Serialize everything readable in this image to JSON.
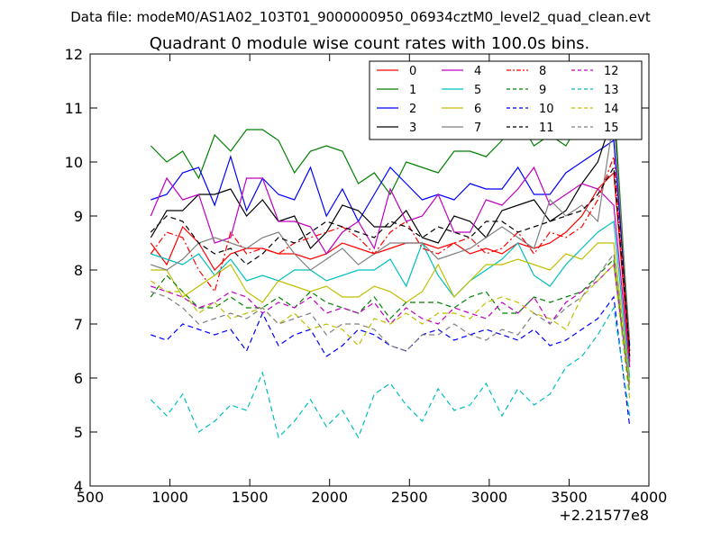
{
  "figure": {
    "suptitle": "Data file: modeM0/AS1A02_103T01_9000000950_06934cztM0_level2_quad_clean.evt"
  },
  "chart_data": {
    "type": "line",
    "title": "Quadrant 0 module wise count rates with 100.0s bins.",
    "xlabel": "",
    "ylabel": "",
    "xlim": [
      500,
      4000
    ],
    "ylim": [
      4,
      12
    ],
    "x_offset_label": "+2.21577e8",
    "xticks": [
      500,
      1000,
      1500,
      2000,
      2500,
      3000,
      3500,
      4000
    ],
    "yticks": [
      4,
      5,
      6,
      7,
      8,
      9,
      10,
      11,
      12
    ],
    "xtick_labels": [
      "500",
      "1000",
      "1500",
      "2000",
      "2500",
      "3000",
      "3500",
      "4000"
    ],
    "ytick_labels": [
      "4",
      "5",
      "6",
      "7",
      "8",
      "9",
      "10",
      "11",
      "12"
    ],
    "grid": false,
    "legend": {
      "placement": "top-right",
      "columns": 4
    },
    "x": [
      880,
      980,
      1080,
      1180,
      1280,
      1380,
      1480,
      1580,
      1680,
      1780,
      1880,
      1980,
      2080,
      2180,
      2280,
      2380,
      2480,
      2580,
      2680,
      2780,
      2880,
      2980,
      3080,
      3180,
      3280,
      3380,
      3480,
      3580,
      3680,
      3780,
      3880
    ],
    "series": [
      {
        "name": "0",
        "color": "#ff0000",
        "dash": "solid",
        "values": [
          8.5,
          8.1,
          8.8,
          8.5,
          8.0,
          8.3,
          8.4,
          8.4,
          8.3,
          8.3,
          8.2,
          8.3,
          8.5,
          8.4,
          8.3,
          8.4,
          8.5,
          8.5,
          8.4,
          8.5,
          8.3,
          8.4,
          8.3,
          8.5,
          8.4,
          8.5,
          8.7,
          9.0,
          9.5,
          9.8,
          6.3
        ]
      },
      {
        "name": "1",
        "color": "#008000",
        "dash": "solid",
        "values": [
          10.3,
          10.0,
          10.2,
          9.7,
          10.5,
          10.2,
          10.6,
          10.6,
          10.4,
          9.8,
          10.2,
          10.3,
          10.2,
          9.6,
          9.8,
          9.4,
          10.0,
          9.9,
          9.8,
          10.2,
          10.2,
          10.1,
          10.4,
          10.8,
          10.3,
          10.5,
          10.3,
          10.8,
          11.0,
          11.2,
          6.5
        ]
      },
      {
        "name": "2",
        "color": "#0000ff",
        "dash": "solid",
        "values": [
          9.3,
          9.4,
          9.8,
          9.9,
          9.2,
          10.1,
          9.1,
          9.7,
          9.4,
          9.3,
          9.9,
          9.0,
          9.5,
          8.9,
          9.4,
          9.9,
          9.6,
          9.3,
          9.4,
          9.3,
          9.6,
          9.5,
          9.5,
          9.9,
          9.4,
          9.4,
          9.8,
          10.0,
          10.2,
          10.4,
          6.6
        ]
      },
      {
        "name": "3",
        "color": "#000000",
        "dash": "solid",
        "values": [
          8.6,
          9.1,
          9.1,
          9.4,
          9.4,
          9.5,
          9.0,
          9.3,
          8.9,
          9.0,
          8.4,
          8.7,
          9.2,
          9.1,
          8.8,
          8.8,
          9.1,
          8.6,
          8.5,
          9.0,
          8.9,
          8.6,
          9.1,
          9.2,
          9.3,
          8.9,
          9.1,
          9.6,
          10.0,
          10.9,
          6.4
        ]
      },
      {
        "name": "4",
        "color": "#bf00bf",
        "dash": "solid",
        "values": [
          9.0,
          9.7,
          9.3,
          9.4,
          8.5,
          8.6,
          9.7,
          9.7,
          8.9,
          8.9,
          8.8,
          8.3,
          8.7,
          8.9,
          8.4,
          9.5,
          8.9,
          9.0,
          9.4,
          8.7,
          8.7,
          9.3,
          9.2,
          9.5,
          9.9,
          9.2,
          9.4,
          9.6,
          9.5,
          9.2,
          6.2
        ]
      },
      {
        "name": "5",
        "color": "#00bfbf",
        "dash": "solid",
        "values": [
          8.3,
          8.2,
          8.1,
          8.3,
          7.9,
          8.2,
          7.8,
          7.9,
          7.8,
          8.0,
          8.0,
          7.8,
          7.9,
          8.0,
          8.0,
          8.2,
          7.7,
          8.5,
          7.9,
          7.5,
          7.8,
          8.0,
          8.2,
          8.5,
          7.9,
          7.7,
          8.1,
          8.4,
          8.7,
          8.9,
          6.0
        ]
      },
      {
        "name": "6",
        "color": "#bfbf00",
        "dash": "solid",
        "values": [
          8.0,
          8.0,
          7.5,
          7.7,
          7.9,
          8.1,
          7.6,
          7.4,
          7.8,
          7.7,
          7.6,
          7.7,
          7.5,
          7.5,
          7.7,
          7.6,
          7.4,
          7.6,
          8.1,
          7.5,
          7.8,
          8.1,
          8.1,
          8.2,
          8.1,
          8.0,
          8.3,
          8.2,
          8.5,
          8.5,
          5.9
        ]
      },
      {
        "name": "7",
        "color": "#808080",
        "dash": "solid",
        "values": [
          8.1,
          8.0,
          8.2,
          8.5,
          8.6,
          8.5,
          8.4,
          8.6,
          8.7,
          8.3,
          8.0,
          8.2,
          8.4,
          8.1,
          8.3,
          8.5,
          8.5,
          8.5,
          8.2,
          8.3,
          8.4,
          8.6,
          8.8,
          8.6,
          8.4,
          9.3,
          9.0,
          9.2,
          8.9,
          10.8,
          6.7
        ]
      },
      {
        "name": "8",
        "color": "#ff0000",
        "dash": "dashdot",
        "values": [
          8.3,
          8.7,
          8.6,
          8.0,
          7.6,
          8.7,
          8.3,
          8.4,
          8.3,
          8.5,
          8.6,
          8.7,
          8.8,
          8.6,
          8.3,
          8.7,
          8.9,
          8.4,
          8.3,
          8.5,
          8.6,
          8.3,
          8.4,
          8.7,
          8.3,
          8.7,
          8.6,
          8.8,
          9.3,
          10.1,
          6.4
        ]
      },
      {
        "name": "9",
        "color": "#008000",
        "dash": "dashed",
        "values": [
          7.5,
          7.9,
          7.6,
          7.3,
          7.3,
          7.5,
          7.3,
          7.3,
          7.5,
          7.3,
          7.6,
          7.4,
          7.3,
          7.2,
          7.5,
          7.1,
          7.4,
          7.4,
          7.4,
          7.3,
          7.5,
          7.6,
          7.2,
          7.2,
          7.5,
          7.4,
          7.5,
          7.6,
          7.9,
          8.2,
          5.7
        ]
      },
      {
        "name": "10",
        "color": "#0000ff",
        "dash": "dashed",
        "values": [
          6.8,
          6.7,
          7.0,
          6.9,
          6.8,
          6.9,
          6.5,
          7.2,
          6.6,
          6.8,
          6.9,
          6.4,
          6.6,
          6.9,
          6.8,
          6.6,
          6.5,
          6.8,
          6.9,
          6.7,
          6.8,
          6.9,
          6.8,
          6.7,
          6.9,
          6.6,
          6.7,
          6.9,
          7.1,
          7.5,
          5.1
        ]
      },
      {
        "name": "11",
        "color": "#000000",
        "dash": "dashed",
        "values": [
          8.7,
          9.0,
          8.9,
          8.5,
          8.3,
          8.4,
          8.1,
          8.3,
          8.6,
          8.5,
          8.7,
          8.9,
          8.8,
          8.7,
          8.6,
          8.9,
          8.8,
          8.6,
          8.8,
          8.7,
          8.6,
          8.9,
          8.9,
          8.7,
          8.8,
          8.9,
          9.0,
          9.1,
          9.4,
          9.9,
          6.5
        ]
      },
      {
        "name": "12",
        "color": "#bf00bf",
        "dash": "dashed",
        "values": [
          7.7,
          7.6,
          7.5,
          7.3,
          7.4,
          7.6,
          7.5,
          7.2,
          7.4,
          7.3,
          7.5,
          7.2,
          7.3,
          7.2,
          7.4,
          7.0,
          7.3,
          7.1,
          7.0,
          7.3,
          7.2,
          7.1,
          7.4,
          7.2,
          7.5,
          7.0,
          7.4,
          7.6,
          7.8,
          8.1,
          5.8
        ]
      },
      {
        "name": "13",
        "color": "#00bfbf",
        "dash": "dashed",
        "values": [
          5.6,
          5.3,
          5.7,
          5.0,
          5.2,
          5.5,
          5.4,
          6.1,
          4.9,
          5.2,
          5.6,
          5.1,
          5.4,
          4.9,
          5.7,
          5.9,
          5.5,
          5.2,
          5.8,
          5.4,
          5.5,
          5.9,
          5.3,
          5.8,
          5.5,
          5.7,
          6.2,
          6.4,
          6.8,
          7.3,
          5.3
        ]
      },
      {
        "name": "14",
        "color": "#bfbf00",
        "dash": "dashed",
        "values": [
          7.8,
          7.6,
          7.6,
          7.2,
          7.4,
          7.1,
          7.2,
          7.3,
          7.0,
          7.2,
          6.9,
          7.0,
          6.9,
          6.6,
          7.1,
          7.0,
          7.2,
          7.0,
          7.2,
          7.2,
          7.1,
          7.4,
          7.5,
          7.4,
          7.2,
          7.1,
          6.9,
          7.5,
          7.8,
          8.1,
          5.6
        ]
      },
      {
        "name": "15",
        "color": "#808080",
        "dash": "dashed",
        "values": [
          7.6,
          7.5,
          7.3,
          7.0,
          7.1,
          7.2,
          7.1,
          7.3,
          7.0,
          7.1,
          7.2,
          6.8,
          7.0,
          7.0,
          6.9,
          6.6,
          6.5,
          6.8,
          6.8,
          7.0,
          6.8,
          6.7,
          6.9,
          6.8,
          7.2,
          7.0,
          7.3,
          7.5,
          7.9,
          8.3,
          5.8
        ]
      }
    ]
  }
}
